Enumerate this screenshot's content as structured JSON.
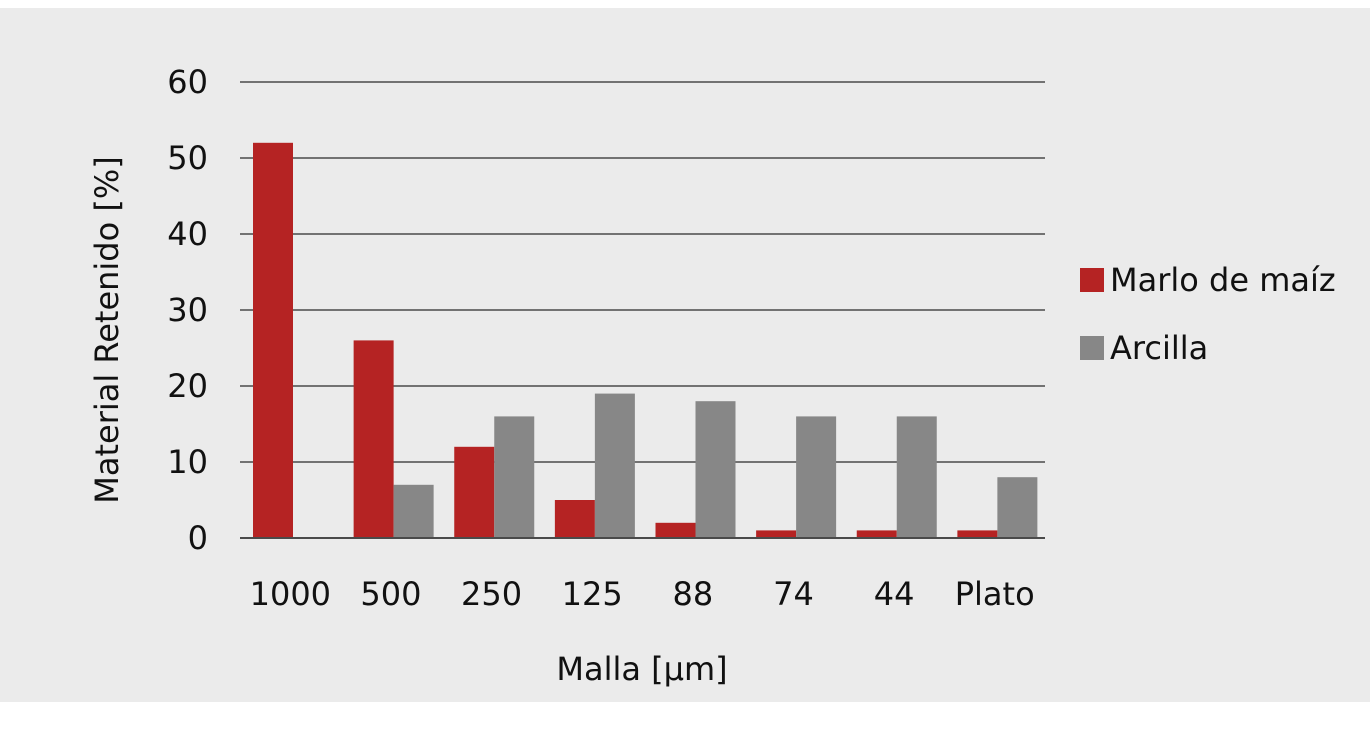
{
  "chart_data": {
    "type": "bar",
    "categories": [
      "1000",
      "500",
      "250",
      "125",
      "88",
      "74",
      "44",
      "Plato"
    ],
    "series": [
      {
        "name": "Marlo de maíz",
        "color": "#b52323",
        "values": [
          52,
          26,
          12,
          5,
          2,
          1,
          1,
          1
        ]
      },
      {
        "name": "Arcilla",
        "color": "#878787",
        "values": [
          0,
          7,
          16,
          19,
          18,
          16,
          16,
          8
        ]
      }
    ],
    "xlabel": "Malla [µm]",
    "ylabel": "Material Retenido [%]",
    "ylim": [
      0,
      60
    ],
    "yticks": [
      0,
      10,
      20,
      30,
      40,
      50,
      60
    ],
    "grid": true,
    "legend_position": "right"
  }
}
